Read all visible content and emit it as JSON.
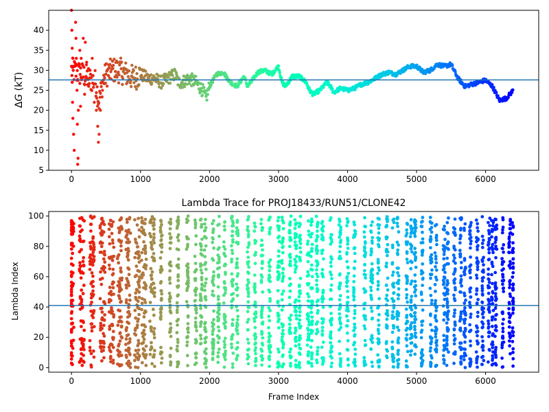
{
  "chart_data": [
    {
      "type": "scatter",
      "title": "",
      "xlabel": "",
      "ylabel": "ΔG (kT)",
      "ylabel_prefix": "Δ",
      "ylabel_var": "G",
      "ylabel_unit": " (kT)",
      "xlim": [
        -330,
        6770
      ],
      "ylim": [
        5,
        45
      ],
      "xticks": [
        0,
        1000,
        2000,
        3000,
        4000,
        5000,
        6000
      ],
      "yticks": [
        5,
        10,
        15,
        20,
        25,
        30,
        35,
        40
      ],
      "hline": 27.6,
      "hline_color": "#1f77b4",
      "colormap": "rainbow (red at frame 0 → violet at last frame)",
      "x_range": [
        0,
        6400
      ],
      "trace_keypoints": [
        [
          0,
          30
        ],
        [
          150,
          29
        ],
        [
          250,
          28
        ],
        [
          350,
          27
        ],
        [
          400,
          22
        ],
        [
          450,
          27
        ],
        [
          500,
          29
        ],
        [
          600,
          30
        ],
        [
          700,
          30
        ],
        [
          800,
          29
        ],
        [
          900,
          28
        ],
        [
          1000,
          29
        ],
        [
          1100,
          28
        ],
        [
          1200,
          28
        ],
        [
          1300,
          27
        ],
        [
          1400,
          28
        ],
        [
          1500,
          29
        ],
        [
          1550,
          27
        ],
        [
          1600,
          27
        ],
        [
          1700,
          28
        ],
        [
          1800,
          27
        ],
        [
          1900,
          25
        ],
        [
          1950,
          23
        ],
        [
          2000,
          26
        ],
        [
          2100,
          29
        ],
        [
          2200,
          29.5
        ],
        [
          2300,
          27
        ],
        [
          2400,
          26
        ],
        [
          2500,
          28.5
        ],
        [
          2550,
          26
        ],
        [
          2600,
          27
        ],
        [
          2700,
          29.5
        ],
        [
          2800,
          30
        ],
        [
          2900,
          29
        ],
        [
          3000,
          31
        ],
        [
          3050,
          27
        ],
        [
          3100,
          26
        ],
        [
          3200,
          28.5
        ],
        [
          3300,
          28.5
        ],
        [
          3400,
          27
        ],
        [
          3450,
          25
        ],
        [
          3500,
          24
        ],
        [
          3600,
          25
        ],
        [
          3700,
          27
        ],
        [
          3750,
          26
        ],
        [
          3800,
          24.5
        ],
        [
          3900,
          25.5
        ],
        [
          4000,
          25
        ],
        [
          4100,
          25.5
        ],
        [
          4200,
          26.5
        ],
        [
          4300,
          27
        ],
        [
          4400,
          28
        ],
        [
          4500,
          29
        ],
        [
          4600,
          29.5
        ],
        [
          4700,
          29
        ],
        [
          4800,
          30
        ],
        [
          4900,
          31
        ],
        [
          5000,
          31
        ],
        [
          5100,
          29.5
        ],
        [
          5200,
          30
        ],
        [
          5300,
          31.5
        ],
        [
          5400,
          31
        ],
        [
          5500,
          31.5
        ],
        [
          5600,
          28
        ],
        [
          5700,
          26
        ],
        [
          5800,
          26.5
        ],
        [
          5900,
          27
        ],
        [
          6000,
          27.5
        ],
        [
          6100,
          26
        ],
        [
          6200,
          22.5
        ],
        [
          6300,
          23
        ],
        [
          6400,
          25
        ]
      ],
      "early_scatter": [
        [
          0,
          45
        ],
        [
          5,
          40
        ],
        [
          10,
          35.5
        ],
        [
          20,
          33
        ],
        [
          25,
          30
        ],
        [
          10,
          27
        ],
        [
          15,
          22
        ],
        [
          20,
          18
        ],
        [
          30,
          14
        ],
        [
          40,
          10
        ],
        [
          60,
          42
        ],
        [
          65,
          38
        ],
        [
          70,
          33
        ],
        [
          80,
          25
        ],
        [
          85,
          16.5
        ],
        [
          90,
          6.5
        ],
        [
          95,
          8
        ],
        [
          100,
          20
        ],
        [
          110,
          31
        ],
        [
          120,
          35
        ],
        [
          130,
          21
        ],
        [
          140,
          33
        ],
        [
          150,
          28
        ],
        [
          170,
          38
        ],
        [
          190,
          24
        ],
        [
          200,
          37
        ],
        [
          220,
          32
        ],
        [
          250,
          26
        ],
        [
          300,
          33
        ],
        [
          330,
          22
        ],
        [
          360,
          20
        ],
        [
          380,
          16
        ],
        [
          390,
          12
        ],
        [
          400,
          14
        ],
        [
          420,
          20
        ],
        [
          450,
          25
        ]
      ]
    },
    {
      "type": "scatter",
      "title": "Lambda Trace for PROJ18433/RUN51/CLONE42",
      "xlabel": "Frame Index",
      "ylabel": "Lambda Index",
      "xlim": [
        -330,
        6770
      ],
      "ylim": [
        -3,
        103
      ],
      "xticks": [
        0,
        1000,
        2000,
        3000,
        4000,
        5000,
        6000
      ],
      "yticks": [
        0,
        20,
        40,
        60,
        80,
        100
      ],
      "hline": 41,
      "hline_color": "#1f77b4",
      "colormap": "rainbow (red at frame 0 → violet at last frame)",
      "x_range": [
        0,
        6400
      ],
      "y_range": [
        0,
        100
      ],
      "band_centers": [
        0,
        150,
        300,
        450,
        580,
        700,
        820,
        950,
        1050,
        1170,
        1300,
        1430,
        1540,
        1680,
        1800,
        1880,
        1940,
        2050,
        2130,
        2220,
        2330,
        2400,
        2560,
        2660,
        2760,
        2870,
        3000,
        3060,
        3170,
        3250,
        3310,
        3430,
        3480,
        3560,
        3640,
        3760,
        3890,
        4000,
        4100,
        4250,
        4350,
        4450,
        4570,
        4660,
        4730,
        4860,
        4920,
        4980,
        5080,
        5210,
        5280,
        5400,
        5450,
        5550,
        5640,
        5700,
        5780,
        5880,
        5960,
        6050,
        6100,
        6150,
        6250,
        6350,
        6400
      ]
    }
  ]
}
